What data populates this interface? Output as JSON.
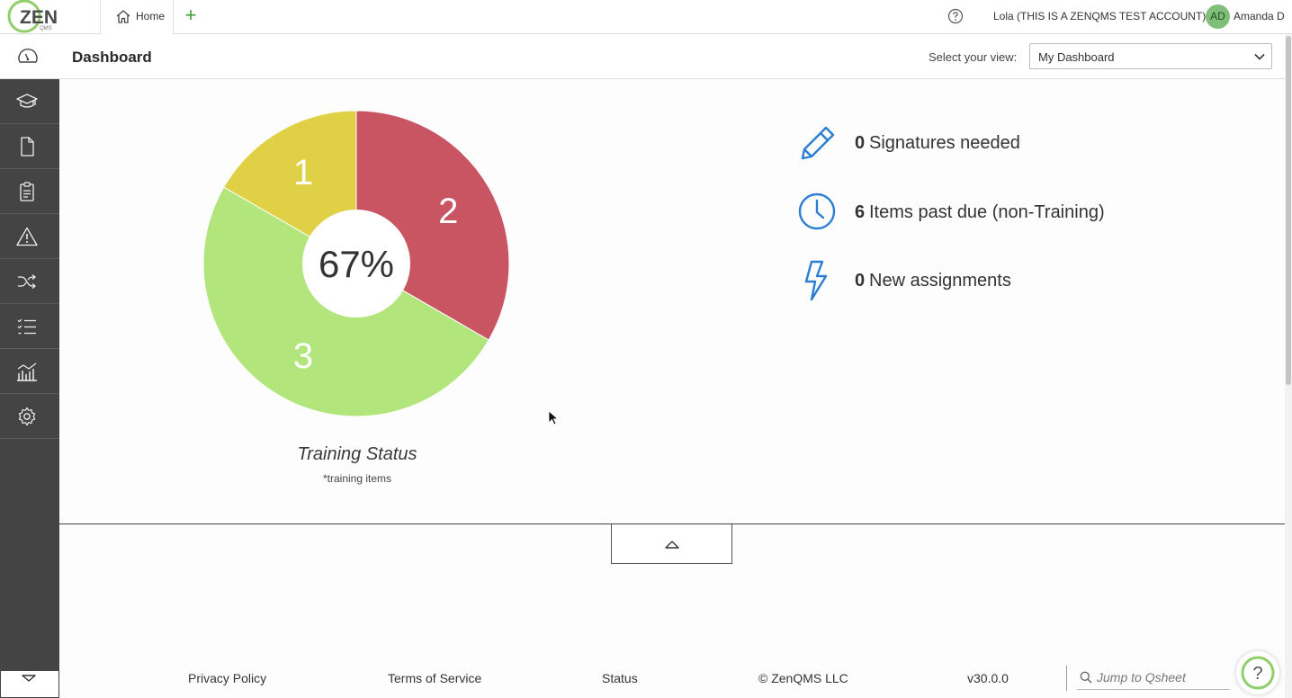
{
  "topbar": {
    "logo_text": "ZEN",
    "logo_sub": "QMS",
    "home_tab_label": "Home",
    "add_tab_symbol": "+",
    "account_label": "Lola (THIS IS A ZENQMS TEST ACCOUNT)",
    "avatar_initials": "AD",
    "user_name": "Amanda D"
  },
  "header": {
    "title": "Dashboard",
    "view_label": "Select your view:",
    "view_selected": "My Dashboard"
  },
  "sidebar": {
    "items": [
      {
        "icon": "graduation-cap-icon"
      },
      {
        "icon": "document-icon"
      },
      {
        "icon": "clipboard-icon"
      },
      {
        "icon": "warning-icon"
      },
      {
        "icon": "shuffle-icon"
      },
      {
        "icon": "checklist-icon"
      },
      {
        "icon": "analytics-icon"
      },
      {
        "icon": "gear-icon"
      }
    ],
    "collapse_icon": "chevron-down-icon"
  },
  "chart_data": {
    "type": "pie",
    "title": "Training Status",
    "subtitle": "*training items",
    "center_label": "67%",
    "slices": [
      {
        "label": "2",
        "value": 2,
        "color": "#c95563"
      },
      {
        "label": "3",
        "value": 3,
        "color": "#b2e57c"
      },
      {
        "label": "1",
        "value": 1,
        "color": "#dfd046"
      }
    ]
  },
  "stats": [
    {
      "count": "0",
      "label": "Signatures needed",
      "icon": "pencil-icon"
    },
    {
      "count": "6",
      "label": "Items past due (non-Training)",
      "icon": "clock-icon"
    },
    {
      "count": "0",
      "label": "New assignments",
      "icon": "lightning-icon"
    }
  ],
  "footer": {
    "privacy": "Privacy Policy",
    "terms": "Terms of Service",
    "status": "Status",
    "copyright": "© ZenQMS LLC",
    "version": "v30.0.0",
    "qsheet_placeholder": "Jump to Qsheet"
  },
  "colors": {
    "accent_green": "#3f9a3a",
    "stat_icon_blue": "#2b7ed1",
    "sidebar_bg": "#444444"
  }
}
